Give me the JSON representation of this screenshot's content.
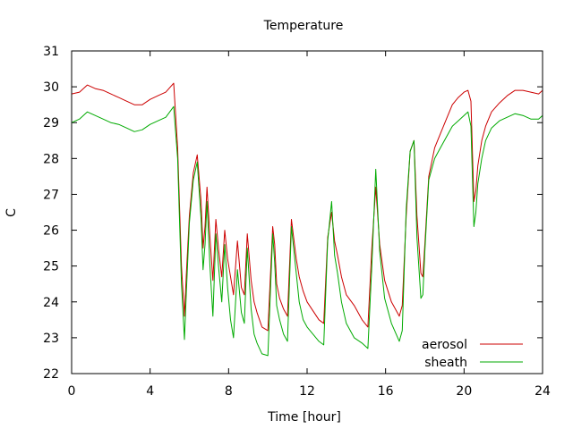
{
  "chart_data": {
    "type": "line",
    "title": "Temperature",
    "xlabel": "Time [hour]",
    "ylabel": "C",
    "xlim": [
      0,
      24
    ],
    "ylim": [
      22,
      31
    ],
    "x_ticks": [
      0,
      4,
      8,
      12,
      16,
      20,
      24
    ],
    "y_ticks": [
      22,
      23,
      24,
      25,
      26,
      27,
      28,
      29,
      30,
      31
    ],
    "grid": false,
    "legend_position": "bottom-right",
    "series": [
      {
        "name": "aerosol",
        "color": "#cc0000",
        "x": [
          0.0,
          0.4,
          0.8,
          1.2,
          1.6,
          2.0,
          2.4,
          2.8,
          3.2,
          3.6,
          4.0,
          4.4,
          4.8,
          5.2,
          5.4,
          5.6,
          5.75,
          5.85,
          6.0,
          6.2,
          6.4,
          6.6,
          6.7,
          6.8,
          6.9,
          7.05,
          7.2,
          7.35,
          7.5,
          7.65,
          7.8,
          7.95,
          8.1,
          8.25,
          8.45,
          8.65,
          8.8,
          8.95,
          9.15,
          9.3,
          9.45,
          9.7,
          10.0,
          10.25,
          10.35,
          10.45,
          10.6,
          10.8,
          11.0,
          11.2,
          11.45,
          11.6,
          11.8,
          12.0,
          12.3,
          12.6,
          12.85,
          13.05,
          13.25,
          13.4,
          13.55,
          13.75,
          14.0,
          14.4,
          14.8,
          15.1,
          15.3,
          15.5,
          15.7,
          15.95,
          16.3,
          16.7,
          16.85,
          17.05,
          17.25,
          17.45,
          17.6,
          17.8,
          17.9,
          18.0,
          18.2,
          18.5,
          18.8,
          19.1,
          19.4,
          19.7,
          20.0,
          20.2,
          20.35,
          20.5,
          20.6,
          20.7,
          20.9,
          21.1,
          21.4,
          21.8,
          22.2,
          22.6,
          23.0,
          23.4,
          23.8,
          24.0
        ],
        "y": [
          29.8,
          29.85,
          30.05,
          29.95,
          29.9,
          29.8,
          29.7,
          29.6,
          29.5,
          29.5,
          29.65,
          29.75,
          29.85,
          30.1,
          28.3,
          25.0,
          23.6,
          24.8,
          26.4,
          27.6,
          28.1,
          26.8,
          25.5,
          26.1,
          27.2,
          25.8,
          24.6,
          26.3,
          25.4,
          24.7,
          26.0,
          25.2,
          24.7,
          24.2,
          25.7,
          24.4,
          24.2,
          25.9,
          24.6,
          24.0,
          23.7,
          23.3,
          23.2,
          26.1,
          25.6,
          24.5,
          24.1,
          23.8,
          23.6,
          26.3,
          25.2,
          24.7,
          24.3,
          24.0,
          23.75,
          23.5,
          23.4,
          25.8,
          26.5,
          25.7,
          25.3,
          24.7,
          24.2,
          23.9,
          23.5,
          23.3,
          25.5,
          27.2,
          25.6,
          24.6,
          24.0,
          23.6,
          23.9,
          26.4,
          28.2,
          28.5,
          26.4,
          24.8,
          24.7,
          25.6,
          27.5,
          28.3,
          28.7,
          29.1,
          29.5,
          29.7,
          29.85,
          29.9,
          29.6,
          26.8,
          27.1,
          27.8,
          28.5,
          28.9,
          29.3,
          29.55,
          29.75,
          29.9,
          29.9,
          29.85,
          29.8,
          29.9
        ]
      },
      {
        "name": "sheath",
        "color": "#00aa00",
        "x": [
          0.0,
          0.4,
          0.8,
          1.2,
          1.6,
          2.0,
          2.4,
          2.8,
          3.2,
          3.6,
          4.0,
          4.4,
          4.8,
          5.2,
          5.4,
          5.6,
          5.75,
          5.85,
          6.0,
          6.2,
          6.4,
          6.6,
          6.7,
          6.8,
          6.9,
          7.05,
          7.2,
          7.35,
          7.5,
          7.65,
          7.8,
          7.95,
          8.1,
          8.25,
          8.45,
          8.65,
          8.8,
          8.95,
          9.15,
          9.3,
          9.45,
          9.7,
          10.0,
          10.25,
          10.35,
          10.45,
          10.6,
          10.8,
          11.0,
          11.2,
          11.45,
          11.6,
          11.8,
          12.0,
          12.3,
          12.6,
          12.85,
          13.05,
          13.25,
          13.4,
          13.55,
          13.75,
          14.0,
          14.4,
          14.8,
          15.1,
          15.3,
          15.5,
          15.7,
          15.95,
          16.3,
          16.7,
          16.85,
          17.05,
          17.25,
          17.45,
          17.6,
          17.8,
          17.9,
          18.0,
          18.2,
          18.5,
          18.8,
          19.1,
          19.4,
          19.7,
          20.0,
          20.2,
          20.35,
          20.5,
          20.6,
          20.7,
          20.9,
          21.1,
          21.4,
          21.8,
          22.2,
          22.6,
          23.0,
          23.4,
          23.8,
          24.0
        ],
        "y": [
          29.0,
          29.1,
          29.3,
          29.2,
          29.1,
          29.0,
          28.95,
          28.85,
          28.75,
          28.8,
          28.95,
          29.05,
          29.15,
          29.45,
          28.0,
          24.5,
          22.95,
          24.3,
          26.2,
          27.4,
          27.9,
          26.3,
          24.9,
          25.6,
          26.8,
          25.0,
          23.6,
          25.9,
          24.9,
          24.0,
          25.6,
          24.4,
          23.5,
          23.0,
          24.9,
          23.7,
          23.4,
          25.5,
          23.8,
          23.1,
          22.85,
          22.55,
          22.5,
          25.9,
          25.1,
          23.9,
          23.5,
          23.1,
          22.9,
          26.1,
          24.8,
          24.0,
          23.5,
          23.3,
          23.1,
          22.9,
          22.8,
          25.7,
          26.8,
          25.3,
          24.8,
          24.0,
          23.4,
          23.0,
          22.85,
          22.7,
          25.0,
          27.7,
          25.4,
          24.1,
          23.4,
          22.9,
          23.2,
          26.6,
          28.2,
          28.5,
          25.8,
          24.1,
          24.2,
          25.4,
          27.4,
          28.0,
          28.3,
          28.6,
          28.9,
          29.05,
          29.2,
          29.3,
          28.9,
          26.1,
          26.5,
          27.3,
          28.0,
          28.5,
          28.85,
          29.05,
          29.15,
          29.25,
          29.2,
          29.1,
          29.1,
          29.2
        ]
      }
    ]
  }
}
